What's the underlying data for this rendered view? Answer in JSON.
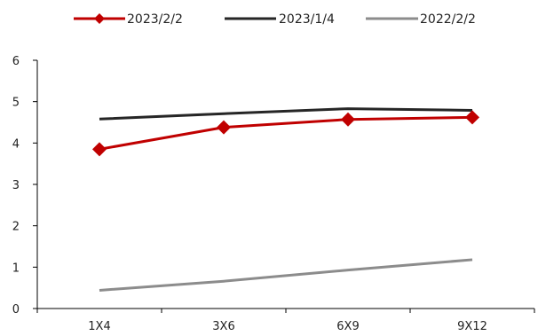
{
  "chart_data": {
    "type": "line",
    "title": "",
    "xlabel": "",
    "ylabel": "",
    "categories": [
      "1X4",
      "3X6",
      "6X9",
      "9X12"
    ],
    "ylim": [
      0,
      6
    ],
    "yticks": [
      "0",
      "1",
      "2",
      "3",
      "4",
      "5",
      "6"
    ],
    "grid": false,
    "legend_position": "top-center",
    "series": [
      {
        "name": "2023/2/2",
        "values": [
          3.85,
          4.38,
          4.57,
          4.62
        ],
        "color": "#c00000",
        "marker": "diamond"
      },
      {
        "name": "2023/1/4",
        "values": [
          4.58,
          4.71,
          4.83,
          4.79
        ],
        "color": "#262626",
        "marker": "none"
      },
      {
        "name": "2022/2/2",
        "values": [
          0.44,
          0.66,
          0.93,
          1.18
        ],
        "color": "#8c8c8c",
        "marker": "none"
      }
    ]
  }
}
